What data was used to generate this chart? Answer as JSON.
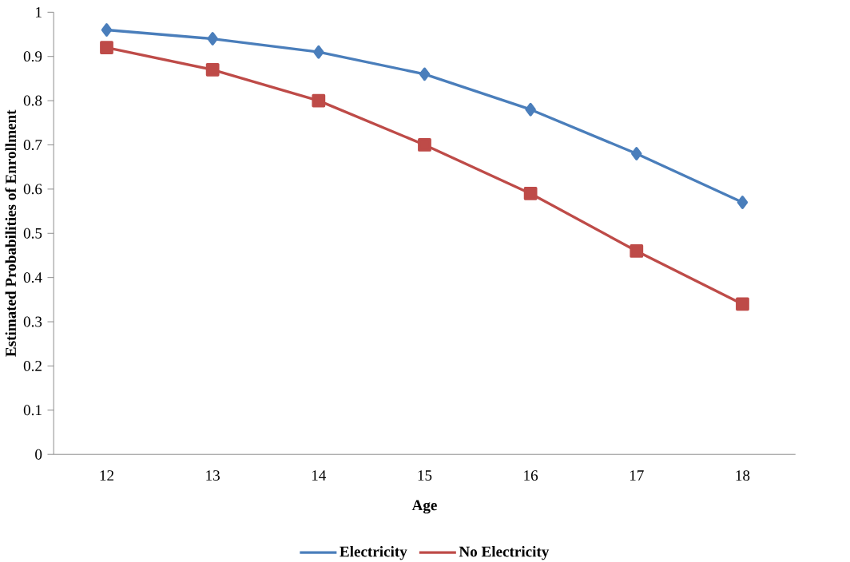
{
  "chart_data": {
    "type": "line",
    "xlabel": "Age",
    "ylabel": "Estimated Probabilities of Enrollment",
    "categories": [
      "12",
      "13",
      "14",
      "15",
      "16",
      "17",
      "18"
    ],
    "series": [
      {
        "name": "Electricity",
        "color": "#4a7ebb",
        "marker": "diamond",
        "values": [
          0.96,
          0.94,
          0.91,
          0.86,
          0.78,
          0.68,
          0.57
        ]
      },
      {
        "name": "No Electricity",
        "color": "#be4b48",
        "marker": "square",
        "values": [
          0.92,
          0.87,
          0.8,
          0.7,
          0.59,
          0.46,
          0.34
        ]
      }
    ],
    "ylim": [
      0,
      1
    ],
    "yticks": [
      0,
      0.1,
      0.2,
      0.3,
      0.4,
      0.5,
      0.6,
      0.7,
      0.8,
      0.9,
      1
    ],
    "grid": false,
    "legend": "bottom",
    "line_style": "solid"
  }
}
